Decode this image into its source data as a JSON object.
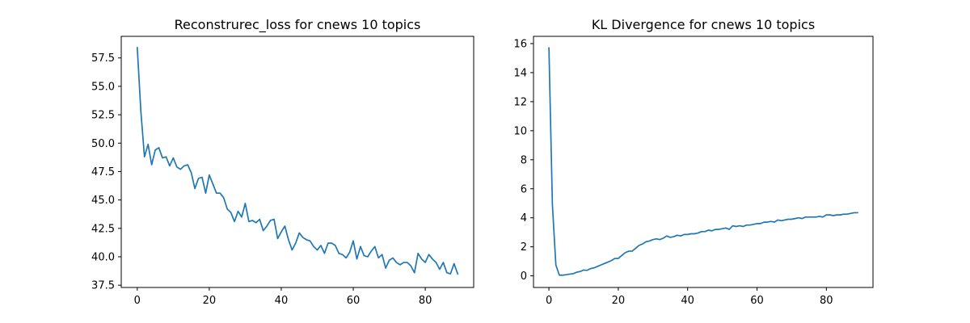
{
  "chart_data": [
    {
      "type": "line",
      "title": "Reconstrurec_loss for cnews 10 topics",
      "xlabel": "",
      "ylabel": "",
      "xlim": [
        -4.45,
        93.45
      ],
      "ylim": [
        37.3,
        59.4
      ],
      "xticks": [
        0,
        20,
        40,
        60,
        80
      ],
      "xtick_labels": [
        "0",
        "20",
        "40",
        "60",
        "80"
      ],
      "yticks": [
        37.5,
        40.0,
        42.5,
        45.0,
        47.5,
        50.0,
        52.5,
        55.0,
        57.5
      ],
      "ytick_labels": [
        "37.5",
        "40.0",
        "42.5",
        "45.0",
        "47.5",
        "50.0",
        "52.5",
        "55.0",
        "57.5"
      ],
      "grid": false,
      "series": [
        {
          "color": "#1f77b4",
          "x": [
            0,
            1,
            2,
            3,
            4,
            5,
            6,
            7,
            8,
            9,
            10,
            11,
            12,
            13,
            14,
            15,
            16,
            17,
            18,
            19,
            20,
            21,
            22,
            23,
            24,
            25,
            26,
            27,
            28,
            29,
            30,
            31,
            32,
            33,
            34,
            35,
            36,
            37,
            38,
            39,
            40,
            41,
            42,
            43,
            44,
            45,
            46,
            47,
            48,
            49,
            50,
            51,
            52,
            53,
            54,
            55,
            56,
            57,
            58,
            59,
            60,
            61,
            62,
            63,
            64,
            65,
            66,
            67,
            68,
            69,
            70,
            71,
            72,
            73,
            74,
            75,
            76,
            77,
            78,
            79,
            80,
            81,
            82,
            83,
            84,
            85,
            86,
            87,
            88,
            89
          ],
          "y": [
            58.4,
            52.8,
            48.8,
            49.9,
            48.1,
            49.4,
            49.6,
            48.7,
            48.8,
            48.0,
            48.7,
            47.9,
            47.7,
            48.0,
            48.1,
            47.4,
            46.0,
            46.9,
            47.0,
            45.6,
            47.2,
            46.4,
            45.6,
            45.6,
            45.2,
            44.2,
            43.9,
            43.1,
            44.0,
            43.5,
            44.7,
            43.1,
            43.2,
            43.0,
            43.3,
            42.3,
            42.7,
            43.2,
            43.3,
            41.6,
            42.2,
            42.7,
            41.5,
            40.6,
            41.2,
            42.1,
            41.7,
            41.5,
            41.4,
            40.9,
            40.6,
            41.0,
            40.3,
            41.2,
            41.2,
            41.0,
            40.3,
            40.2,
            39.9,
            40.4,
            41.4,
            39.8,
            40.9,
            40.1,
            40.0,
            40.5,
            40.9,
            39.9,
            40.2,
            39.0,
            39.7,
            39.9,
            39.5,
            39.3,
            39.5,
            39.5,
            39.2,
            38.6,
            40.3,
            39.8,
            39.5,
            40.2,
            39.8,
            39.5,
            38.9,
            39.5,
            38.6,
            38.5,
            39.4,
            38.5
          ]
        }
      ]
    },
    {
      "type": "line",
      "title": "KL Divergence for cnews 10 topics",
      "xlabel": "",
      "ylabel": "",
      "xlim": [
        -4.45,
        93.45
      ],
      "ylim": [
        -0.8,
        16.5
      ],
      "xticks": [
        0,
        20,
        40,
        60,
        80
      ],
      "xtick_labels": [
        "0",
        "20",
        "40",
        "60",
        "80"
      ],
      "yticks": [
        0,
        2,
        4,
        6,
        8,
        10,
        12,
        14,
        16
      ],
      "ytick_labels": [
        "0",
        "2",
        "4",
        "6",
        "8",
        "10",
        "12",
        "14",
        "16"
      ],
      "grid": false,
      "series": [
        {
          "color": "#1f77b4",
          "x": [
            0,
            1,
            2,
            3,
            4,
            5,
            6,
            7,
            8,
            9,
            10,
            11,
            12,
            13,
            14,
            15,
            16,
            17,
            18,
            19,
            20,
            21,
            22,
            23,
            24,
            25,
            26,
            27,
            28,
            29,
            30,
            31,
            32,
            33,
            34,
            35,
            36,
            37,
            38,
            39,
            40,
            41,
            42,
            43,
            44,
            45,
            46,
            47,
            48,
            49,
            50,
            51,
            52,
            53,
            54,
            55,
            56,
            57,
            58,
            59,
            60,
            61,
            62,
            63,
            64,
            65,
            66,
            67,
            68,
            69,
            70,
            71,
            72,
            73,
            74,
            75,
            76,
            77,
            78,
            79,
            80,
            81,
            82,
            83,
            84,
            85,
            86,
            87,
            88,
            89
          ],
          "y": [
            15.7,
            4.9,
            0.75,
            0.05,
            0.05,
            0.08,
            0.12,
            0.15,
            0.25,
            0.3,
            0.4,
            0.38,
            0.5,
            0.55,
            0.65,
            0.75,
            0.85,
            0.95,
            1.05,
            1.2,
            1.2,
            1.4,
            1.6,
            1.7,
            1.7,
            1.9,
            2.1,
            2.2,
            2.35,
            2.4,
            2.5,
            2.55,
            2.5,
            2.6,
            2.75,
            2.65,
            2.7,
            2.8,
            2.75,
            2.85,
            2.85,
            2.9,
            2.9,
            2.95,
            3.05,
            3.05,
            3.15,
            3.1,
            3.2,
            3.2,
            3.25,
            3.3,
            3.2,
            3.45,
            3.4,
            3.45,
            3.4,
            3.5,
            3.5,
            3.55,
            3.6,
            3.6,
            3.7,
            3.7,
            3.75,
            3.7,
            3.85,
            3.8,
            3.85,
            3.9,
            3.9,
            3.95,
            4.0,
            3.95,
            4.05,
            4.05,
            4.05,
            4.05,
            4.1,
            4.05,
            4.2,
            4.2,
            4.15,
            4.2,
            4.2,
            4.25,
            4.25,
            4.3,
            4.35,
            4.35
          ]
        }
      ]
    }
  ]
}
